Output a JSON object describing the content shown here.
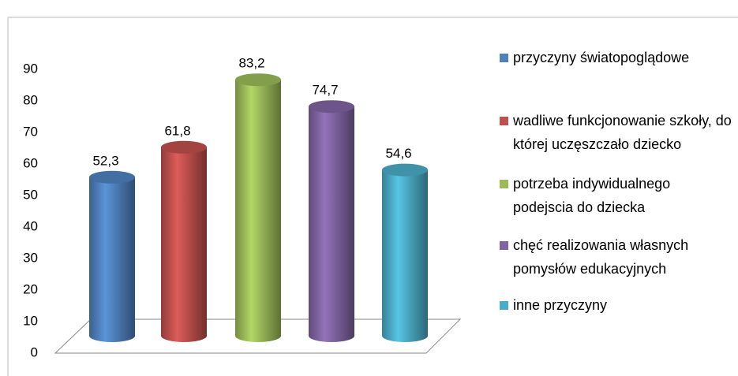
{
  "chart_data": {
    "type": "bar",
    "categories": [
      "przyczyny światopoglądowe",
      "wadliwe funkcjonowanie szkoły, do której uczęszczało dziecko",
      "potrzeba indywidualnego podejscia do dziecka",
      "chęć realizowania własnych pomysłów edukacyjnych",
      "inne przyczyny"
    ],
    "values": [
      52.3,
      61.8,
      83.2,
      74.7,
      54.6
    ],
    "value_labels": [
      "52,3",
      "61,8",
      "83,2",
      "74,7",
      "54,6"
    ],
    "colors": [
      "#4f81bd",
      "#c0504d",
      "#9bbb59",
      "#8064a2",
      "#4bacc6"
    ],
    "ylim": [
      0,
      90
    ],
    "yticks": [
      0,
      10,
      20,
      30,
      40,
      50,
      60,
      70,
      80,
      90
    ],
    "grid": false,
    "legend": "right"
  }
}
